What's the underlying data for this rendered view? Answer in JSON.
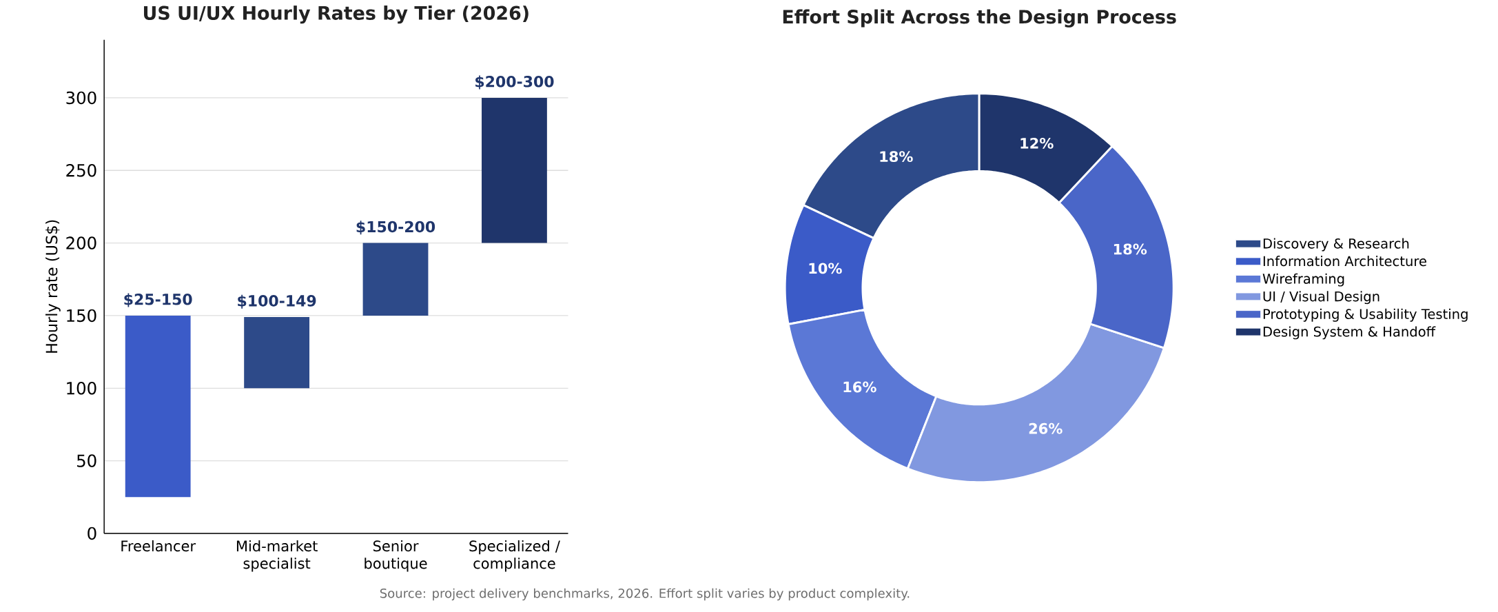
{
  "chart_data": [
    {
      "type": "bar",
      "title": "US UI/UX Hourly Rates by Tier (2026)",
      "ylabel": "Hourly rate (US$)",
      "categories": [
        "Freelancer",
        "Mid-market specialist",
        "Senior boutique",
        "Specialized / compliance"
      ],
      "base": [
        25,
        100,
        150,
        200
      ],
      "values": [
        125,
        49,
        50,
        100
      ],
      "colors": [
        "#3b5bc8",
        "#2d4a89",
        "#2d4a89",
        "#1f356b"
      ],
      "value_labels": [
        "$25-150",
        "$100-149",
        "$150-200",
        "$200-300"
      ],
      "ylim": [
        0,
        340
      ],
      "yticks": [
        0,
        50,
        100,
        150,
        200,
        250,
        300
      ],
      "grid": "y",
      "annotations": [
        "Source: project delivery benchmarks, 2026. Effort split varies by product complexity."
      ]
    },
    {
      "type": "donut",
      "title": "Effort Split Across the Design Process",
      "categories": [
        "Discovery & Research",
        "Information Architecture",
        "Wireframing",
        "UI / Visual Design",
        "Prototyping & Usability Testing",
        "Design System & Handoff"
      ],
      "values": [
        18,
        10,
        16,
        26,
        18,
        12
      ],
      "colors": [
        "#2d4a89",
        "#3b5bc8",
        "#5b78d6",
        "#8198e0",
        "#4a66c8",
        "#1f356b"
      ],
      "value_labels": [
        "18%",
        "10%",
        "16%",
        "26%",
        "18%",
        "12%"
      ],
      "legend": "right"
    }
  ]
}
